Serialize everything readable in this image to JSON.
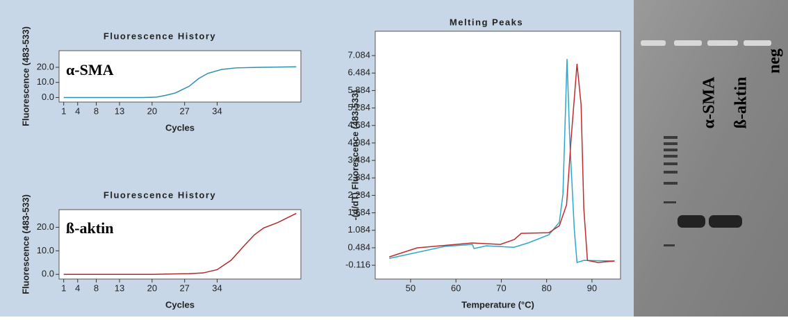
{
  "chart_data": [
    {
      "type": "line",
      "title": "Fluorescence History",
      "x_label": "Cycles",
      "y_label": "Fluorescence (483-533)",
      "annotation": "α-SMA",
      "xlim": [
        0,
        52
      ],
      "xticks": [
        1,
        4,
        8,
        13,
        20,
        27,
        34
      ],
      "ylim": [
        -3,
        31
      ],
      "yticks": [
        {
          "value": 0,
          "label": "0.0"
        },
        {
          "value": 10,
          "label": "10.0"
        },
        {
          "value": 20,
          "label": "20.0"
        }
      ],
      "series": [
        {
          "color": "#2a8fb0",
          "x": [
            1,
            10,
            18,
            21,
            23,
            25,
            28,
            30,
            32,
            35,
            38,
            43,
            51
          ],
          "values": [
            0,
            0,
            0,
            0.3,
            1.5,
            3,
            7.5,
            12.5,
            16,
            18.6,
            19.6,
            20,
            20.3
          ]
        }
      ]
    },
    {
      "type": "line",
      "title": "Fluorescence History",
      "x_label": "Cycles",
      "y_label": "Fluorescence (483-533)",
      "annotation": "ß-aktin",
      "xlim": [
        0,
        52
      ],
      "xticks": [
        1,
        4,
        8,
        13,
        20,
        27,
        34
      ],
      "ylim": [
        -2,
        27.5
      ],
      "yticks": [
        {
          "value": 0,
          "label": "0.0"
        },
        {
          "value": 10,
          "label": "10.0"
        },
        {
          "value": 20,
          "label": "20.0"
        }
      ],
      "series": [
        {
          "color": "#b02a2a",
          "x": [
            1,
            10,
            20,
            28,
            31,
            34,
            37,
            40,
            42,
            44,
            47,
            51
          ],
          "values": [
            0,
            0,
            0,
            0.3,
            0.6,
            2,
            6,
            12.6,
            16.8,
            19.7,
            22,
            25.9
          ]
        }
      ]
    },
    {
      "type": "line",
      "title": "Melting Peaks",
      "x_label": "Temperature (°C)",
      "y_label": "-(d/dT) Fluorescence (483-533)",
      "xlim": [
        42.2,
        96.3
      ],
      "xticks": [
        50,
        60,
        70,
        80,
        90
      ],
      "ylim": [
        -0.59,
        7.92
      ],
      "yticks": [
        -0.116,
        0.484,
        1.084,
        1.684,
        2.284,
        2.884,
        3.484,
        4.084,
        4.684,
        5.284,
        5.884,
        6.484,
        7.084
      ],
      "series": [
        {
          "color": "#2aa7c9",
          "x": [
            45.3,
            57.5,
            63.6,
            64,
            66.7,
            72.8,
            75.9,
            80.5,
            82.8,
            83.6,
            84.5,
            85.1,
            86.1,
            86.7,
            88.2,
            95
          ],
          "values": [
            0.12,
            0.53,
            0.6,
            0.46,
            0.55,
            0.5,
            0.65,
            0.93,
            1.36,
            2.32,
            6.97,
            4.2,
            1.12,
            -0.02,
            0.05,
            0.03
          ]
        },
        {
          "color": "#c02a2a",
          "x": [
            45.3,
            51.4,
            63.6,
            69.8,
            72.9,
            74.4,
            80.5,
            82.8,
            84.4,
            85.4,
            86.7,
            87.6,
            88.2,
            89,
            91.3,
            95
          ],
          "values": [
            0.17,
            0.48,
            0.65,
            0.6,
            0.77,
            0.98,
            1.0,
            1.24,
            1.96,
            4.22,
            6.8,
            5.4,
            1.84,
            0.05,
            -0.02,
            0.03
          ]
        }
      ]
    }
  ],
  "gel": {
    "lane_labels": [
      "α-SMA",
      "ß-aktin",
      "neg"
    ]
  }
}
